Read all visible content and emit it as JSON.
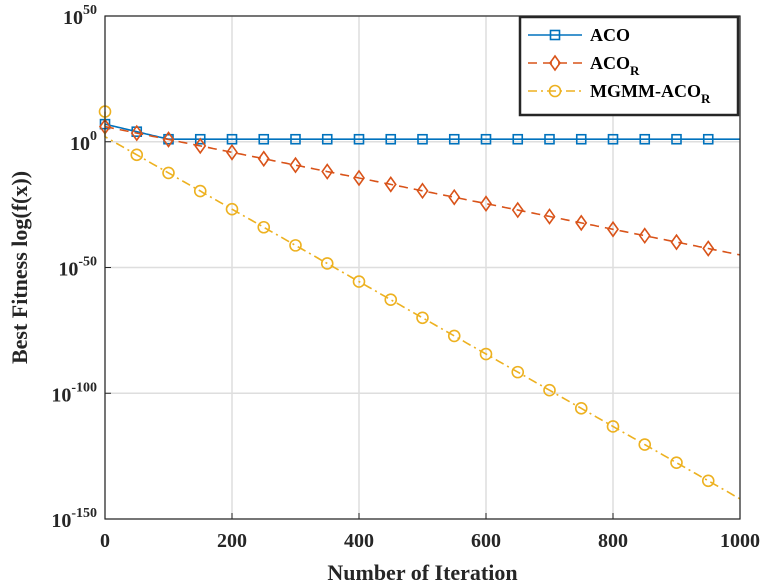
{
  "chart_data": {
    "type": "line",
    "title": "",
    "xlabel": "Number of Iteration",
    "ylabel": "Best Fitness log(f(x))",
    "xlim": [
      0,
      1000
    ],
    "ylim_exponent": [
      -150,
      50
    ],
    "yscale": "log",
    "grid": true,
    "legend_position": "top-right",
    "x_ticks": [
      "0",
      "200",
      "400",
      "600",
      "800",
      "1000"
    ],
    "y_ticks": [
      {
        "base": "10",
        "exp": "-150",
        "value": -150
      },
      {
        "base": "10",
        "exp": "-100",
        "value": -100
      },
      {
        "base": "10",
        "exp": "-50",
        "value": -50
      },
      {
        "base": "10",
        "exp": "0",
        "value": 0
      },
      {
        "base": "10",
        "exp": "50",
        "value": 50
      }
    ],
    "series": [
      {
        "name": "ACO",
        "legend_main": "ACO",
        "legend_sub": "",
        "color": "#0072BD",
        "dash": "solid",
        "marker": "square",
        "start": {
          "x": 0,
          "log10y": 7
        },
        "end": {
          "x": 1000,
          "log10y": 1
        },
        "marker_x": [
          0,
          50,
          100,
          150,
          200,
          250,
          300,
          350,
          400,
          450,
          500,
          550,
          600,
          650,
          700,
          750,
          800,
          850,
          900,
          950
        ],
        "curve": "drop-then-flat"
      },
      {
        "name": "ACO_R",
        "legend_main": "ACO",
        "legend_sub": "R",
        "color": "#D95319",
        "dash": "dashed",
        "marker": "diamond",
        "start": {
          "x": 0,
          "log10y": 6
        },
        "end": {
          "x": 1000,
          "log10y": -45
        },
        "marker_x": [
          0,
          50,
          100,
          150,
          200,
          250,
          300,
          350,
          400,
          450,
          500,
          550,
          600,
          650,
          700,
          750,
          800,
          850,
          900,
          950
        ],
        "curve": "linear"
      },
      {
        "name": "MGMM-ACO_R",
        "legend_main": "MGMM-ACO",
        "legend_sub": "R",
        "color": "#EDB120",
        "dash": "dashdot",
        "marker": "circle",
        "start": {
          "x": 0,
          "log10y": 12
        },
        "end": {
          "x": 1000,
          "log10y": -142
        },
        "marker_x": [
          0,
          50,
          100,
          150,
          200,
          250,
          300,
          350,
          400,
          450,
          500,
          550,
          600,
          650,
          700,
          750,
          800,
          850,
          900,
          950
        ],
        "curve": "linear-after-spike"
      }
    ]
  }
}
